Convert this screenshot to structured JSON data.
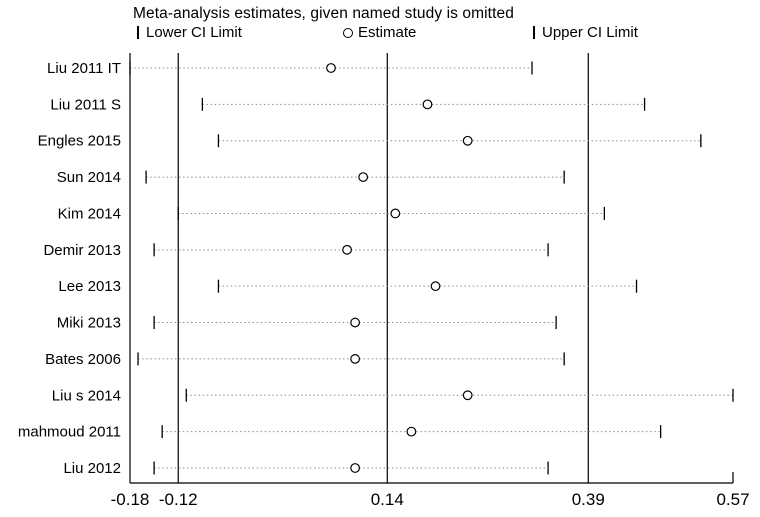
{
  "title": "Meta-analysis estimates, given named study is omitted",
  "legend": {
    "lower_label": "Lower CI Limit",
    "estimate_label": "Estimate",
    "upper_label": "Upper CI Limit"
  },
  "colors": {
    "foreground": "#000000",
    "background": "#ffffff",
    "dotted_line": "#8c8c8c"
  },
  "chart_data": {
    "type": "scatter",
    "subtype": "leave-one-out-sensitivity-forest-plot",
    "title": "Meta-analysis estimates, given named study is omitted",
    "ylabel": "",
    "xlabel": "",
    "studies": [
      "Liu 2011 IT",
      "Liu 2011 S",
      "Engles 2015",
      "Sun 2014",
      "Kim 2014",
      "Demir 2013",
      "Lee 2013",
      "Miki 2013",
      "Bates 2006",
      "Liu s 2014",
      "mahmoud 2011",
      "Liu 2012"
    ],
    "series": [
      {
        "name": "Lower CI Limit",
        "marker": "vertical-tick",
        "values": [
          -0.18,
          -0.09,
          -0.07,
          -0.16,
          -0.12,
          -0.15,
          -0.07,
          -0.15,
          -0.17,
          -0.11,
          -0.14,
          -0.15
        ]
      },
      {
        "name": "Estimate",
        "marker": "open-circle",
        "values": [
          0.07,
          0.19,
          0.24,
          0.11,
          0.15,
          0.09,
          0.2,
          0.1,
          0.1,
          0.24,
          0.17,
          0.1
        ]
      },
      {
        "name": "Upper CI Limit",
        "marker": "vertical-tick",
        "values": [
          0.32,
          0.46,
          0.53,
          0.36,
          0.41,
          0.34,
          0.45,
          0.35,
          0.36,
          0.57,
          0.48,
          0.34
        ]
      }
    ],
    "overall": {
      "lower_ci": -0.12,
      "estimate": 0.14,
      "upper_ci": 0.39
    },
    "xticks": [
      -0.18,
      -0.12,
      0.14,
      0.39,
      0.57
    ],
    "xlim": [
      -0.18,
      0.57
    ],
    "grid": false,
    "legend_position": "top",
    "reference_lines": [
      -0.18,
      -0.12,
      0.14,
      0.39
    ],
    "line_style": "dotted"
  }
}
